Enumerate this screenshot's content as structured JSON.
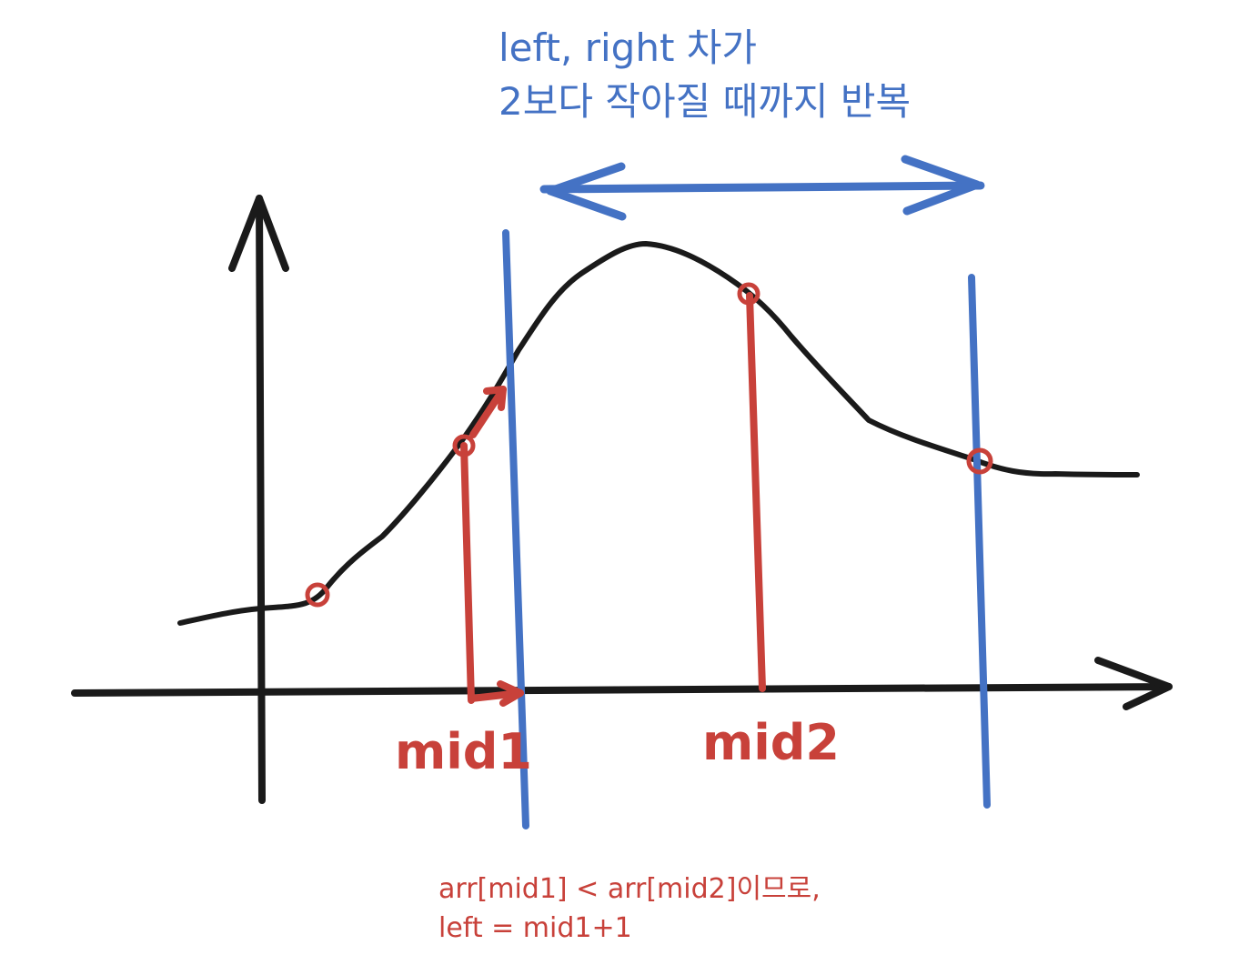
{
  "annotation_top": {
    "line1": "left, right 차가",
    "line2": "2보다 작아질 때까지 반복"
  },
  "labels": {
    "mid1": "mid1",
    "mid2": "mid2"
  },
  "note": {
    "line1": "arr[mid1] < arr[mid2]이므로,",
    "line2": "left = mid1+1"
  },
  "colors": {
    "curve": "#1a1a1a",
    "axis": "#1a1a1a",
    "blue": "#4472c4",
    "red": "#c8413a"
  }
}
